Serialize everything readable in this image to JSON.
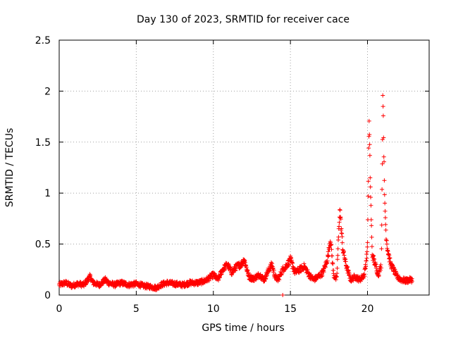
{
  "chart_data": {
    "type": "scatter",
    "title": "Day 130 of 2023, SRMTID for receiver cace",
    "xlabel": "GPS time / hours",
    "ylabel": "SRMTID / TECUs",
    "xlim": [
      0,
      24
    ],
    "ylim": [
      0,
      2.5
    ],
    "grid": true,
    "marker": "+",
    "marker_color": "#ff0000",
    "x_ticks": [
      0,
      5,
      10,
      15,
      20
    ],
    "x_tick_labels": [
      "0",
      "5",
      "10",
      "15",
      "20"
    ],
    "y_ticks": [
      0,
      0.5,
      1,
      1.5,
      2,
      2.5
    ],
    "y_tick_labels": [
      "0",
      "0.5",
      "1",
      "1.5",
      "2",
      "2.5"
    ],
    "series": [
      {
        "name": "SRMTID",
        "profile_hours": [
          0,
          0.4,
          0.8,
          1.2,
          1.6,
          2.0,
          2.2,
          2.6,
          3.0,
          3.2,
          3.6,
          4.0,
          4.5,
          5.0,
          5.5,
          6.0,
          6.3,
          6.6,
          7.0,
          7.5,
          8.0,
          8.5,
          9.0,
          9.5,
          10.0,
          10.3,
          10.6,
          10.9,
          11.2,
          11.5,
          11.8,
          12.0,
          12.3,
          12.6,
          13.0,
          13.3,
          13.6,
          13.8,
          14.0,
          14.2,
          14.5,
          14.8,
          15.0,
          15.3,
          15.6,
          15.9,
          16.2,
          16.5,
          16.8,
          17.1,
          17.4,
          17.6,
          17.8,
          18.0,
          18.2,
          18.4,
          18.6,
          18.9,
          19.2,
          19.5,
          19.8,
          20.0,
          20.1,
          20.2,
          20.3,
          20.5,
          20.7,
          20.9,
          21.0,
          21.1,
          21.2,
          21.3,
          21.5,
          21.7,
          21.9,
          22.2,
          22.5,
          22.8
        ],
        "profile_values": [
          0.1,
          0.12,
          0.09,
          0.11,
          0.1,
          0.18,
          0.12,
          0.1,
          0.15,
          0.12,
          0.1,
          0.12,
          0.1,
          0.11,
          0.09,
          0.08,
          0.07,
          0.1,
          0.12,
          0.11,
          0.1,
          0.12,
          0.12,
          0.14,
          0.2,
          0.15,
          0.25,
          0.3,
          0.22,
          0.28,
          0.3,
          0.35,
          0.18,
          0.16,
          0.2,
          0.15,
          0.25,
          0.3,
          0.18,
          0.15,
          0.25,
          0.3,
          0.35,
          0.22,
          0.25,
          0.28,
          0.2,
          0.15,
          0.18,
          0.22,
          0.35,
          0.55,
          0.2,
          0.15,
          0.85,
          0.45,
          0.3,
          0.15,
          0.18,
          0.15,
          0.2,
          0.45,
          1.72,
          1.0,
          0.4,
          0.3,
          0.2,
          0.3,
          2.02,
          1.0,
          0.6,
          0.45,
          0.3,
          0.25,
          0.18,
          0.15,
          0.14,
          0.15
        ],
        "first_hour": 0.0,
        "last_hour": 22.9,
        "sample_step_hours": 0.0167,
        "noise_amplitude": 0.035,
        "special_points": [
          {
            "x": 14.5,
            "y": 0.0
          }
        ]
      }
    ]
  }
}
